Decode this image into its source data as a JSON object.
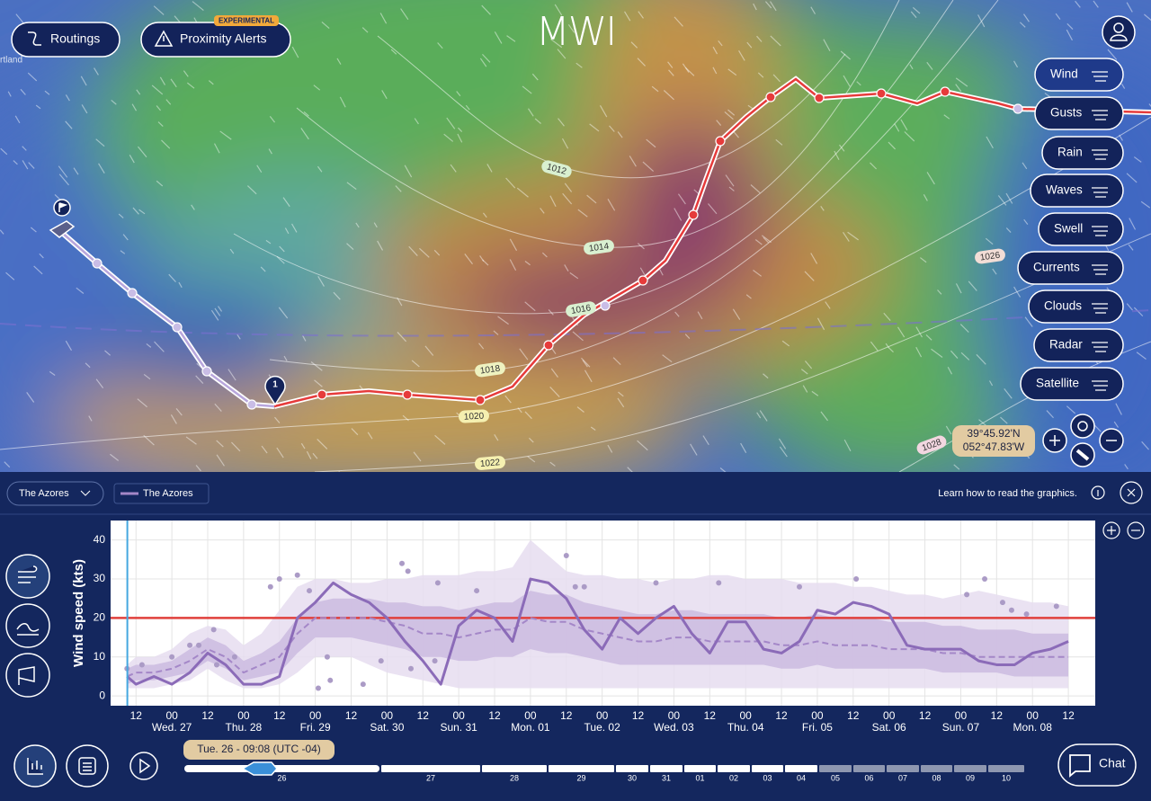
{
  "header": {
    "logo": "MWI",
    "routings": "Routings",
    "proximity_alerts": "Proximity Alerts",
    "badge": "EXPERIMENTAL"
  },
  "map": {
    "place_label": "rtland",
    "layers": [
      "Wind",
      "Gusts",
      "Rain",
      "Waves",
      "Swell",
      "Currents",
      "Clouds",
      "Radar",
      "Satellite"
    ],
    "isobars": [
      "1012",
      "1014",
      "1016",
      "1018",
      "1020",
      "1022",
      "1026",
      "1028"
    ],
    "waypoint_label": "1",
    "coordinates": {
      "lat": "39°45.92'N",
      "lon": "052°47.83'W"
    }
  },
  "panel": {
    "location_select": "The Azores",
    "legend_chip": "The Azores",
    "help": "Learn how to read the graphics.",
    "chat": "Chat",
    "time_label": "Tue. 26 - 09:08 (UTC -04)",
    "timeline_days": [
      "26",
      "27",
      "28",
      "29",
      "30",
      "31",
      "01",
      "02",
      "03",
      "04",
      "05",
      "06",
      "07",
      "08",
      "09",
      "10"
    ]
  },
  "chart_data": {
    "type": "line",
    "y_label": "Wind speed (kts)",
    "grid": true,
    "xlim": [
      3.5,
      333
    ],
    "ylim": [
      -2.5,
      45
    ],
    "yticks": [
      0,
      10,
      20,
      30,
      40
    ],
    "xticks": [
      12,
      {
        "value": 24,
        "label": "00"
      },
      {
        "value": 36,
        "label": "12"
      },
      {
        "value": 48,
        "label": "00"
      },
      {
        "value": 60,
        "label": "12"
      },
      {
        "value": 72,
        "label": "00"
      },
      {
        "value": 84,
        "label": "12"
      },
      {
        "value": 96,
        "label": "00"
      },
      {
        "value": 108,
        "label": "12"
      },
      {
        "value": 120,
        "label": "00"
      },
      {
        "value": 132,
        "label": "12"
      },
      {
        "value": 144,
        "label": "00"
      },
      {
        "value": 156,
        "label": "12"
      },
      {
        "value": 168,
        "label": "00"
      },
      {
        "value": 180,
        "label": "12"
      },
      {
        "value": 192,
        "label": "00"
      },
      {
        "value": 204,
        "label": "12"
      },
      {
        "value": 216,
        "label": "00"
      },
      {
        "value": 228,
        "label": "12"
      },
      {
        "value": 240,
        "label": "00"
      },
      {
        "value": 252,
        "label": "12"
      },
      {
        "value": 264,
        "label": "00"
      },
      {
        "value": 276,
        "label": "12"
      },
      {
        "value": 288,
        "label": "00"
      },
      {
        "value": 300,
        "label": "12"
      },
      {
        "value": 312,
        "label": "00"
      },
      {
        "value": 324,
        "label": "12"
      }
    ],
    "x_day_labels": [
      {
        "value": 24,
        "label": "Wed. 27"
      },
      {
        "value": 48,
        "label": "Thu. 28"
      },
      {
        "value": 72,
        "label": "Fri. 29"
      },
      {
        "value": 96,
        "label": "Sat. 30"
      },
      {
        "value": 120,
        "label": "Sun. 31"
      },
      {
        "value": 144,
        "label": "Mon. 01"
      },
      {
        "value": 168,
        "label": "Tue. 02"
      },
      {
        "value": 192,
        "label": "Wed. 03"
      },
      {
        "value": 216,
        "label": "Thu. 04"
      },
      {
        "value": 240,
        "label": "Fri. 05"
      },
      {
        "value": 264,
        "label": "Sat. 06"
      },
      {
        "value": 288,
        "label": "Sun. 07"
      },
      {
        "value": 312,
        "label": "Mon. 08"
      }
    ],
    "x": [
      9,
      12,
      18,
      24,
      30,
      36,
      42,
      48,
      54,
      60,
      66,
      72,
      78,
      84,
      90,
      96,
      102,
      108,
      114,
      120,
      126,
      132,
      138,
      144,
      150,
      156,
      162,
      168,
      174,
      180,
      186,
      192,
      198,
      204,
      210,
      216,
      222,
      228,
      234,
      240,
      246,
      252,
      258,
      264,
      270,
      276,
      282,
      288,
      294,
      300,
      306,
      312,
      318,
      324
    ],
    "bands": [
      {
        "color": "#e6ddf0",
        "lower": [
          2,
          2,
          2,
          3,
          4,
          7,
          4,
          2,
          2,
          3,
          6,
          10,
          10,
          10,
          8,
          6,
          5,
          4,
          3,
          2,
          2,
          2,
          2,
          2,
          2,
          2,
          2,
          2,
          2,
          2,
          2,
          2,
          2,
          2,
          2,
          2,
          2,
          2,
          2,
          2,
          2,
          2,
          2,
          2,
          2,
          2,
          2,
          2,
          2,
          2,
          2,
          2,
          2,
          2
        ],
        "upper": [
          8,
          10,
          10,
          12,
          16,
          18,
          17,
          13,
          16,
          22,
          28,
          30,
          30,
          29,
          29,
          30,
          30,
          31,
          31,
          31,
          32,
          32,
          33,
          40,
          36,
          32,
          31,
          31,
          30,
          30,
          29,
          30,
          30,
          31,
          31,
          30,
          30,
          30,
          29,
          29,
          29,
          28,
          28,
          27,
          26,
          26,
          25,
          26,
          27,
          26,
          25,
          24,
          24,
          23
        ]
      },
      {
        "color": "#cbbbe0",
        "lower": [
          3,
          4,
          4,
          5,
          6,
          9,
          7,
          4,
          5,
          6,
          11,
          15,
          15,
          15,
          14,
          13,
          12,
          10,
          10,
          9,
          9,
          10,
          10,
          12,
          11,
          11,
          10,
          9,
          8,
          8,
          8,
          8,
          8,
          8,
          8,
          8,
          8,
          7,
          7,
          8,
          7,
          7,
          7,
          7,
          7,
          7,
          6,
          6,
          6,
          6,
          5,
          5,
          5,
          5
        ],
        "upper": [
          7,
          8,
          8,
          9,
          12,
          15,
          13,
          9,
          11,
          14,
          20,
          24,
          25,
          25,
          25,
          24,
          24,
          23,
          23,
          22,
          23,
          24,
          24,
          27,
          26,
          26,
          24,
          23,
          22,
          21,
          21,
          22,
          22,
          21,
          21,
          21,
          21,
          20,
          20,
          21,
          20,
          20,
          20,
          19,
          19,
          19,
          18,
          18,
          17,
          17,
          17,
          16,
          16,
          16
        ]
      }
    ],
    "series": [
      {
        "color": "#a487c8",
        "dashed": true,
        "values": [
          5,
          6,
          6,
          7,
          9,
          12,
          10,
          6,
          8,
          10,
          16,
          20,
          20,
          20,
          20,
          19,
          18,
          16,
          16,
          15,
          16,
          17,
          17,
          20,
          19,
          19,
          17,
          16,
          15,
          14,
          14,
          15,
          15,
          14,
          14,
          14,
          14,
          13,
          13,
          14,
          13,
          13,
          13,
          12,
          12,
          12,
          11,
          11,
          10,
          10,
          10,
          10,
          10,
          10
        ]
      },
      {
        "color": "#8b6bb8",
        "dashed": false,
        "values": [
          5,
          3,
          5,
          3,
          6,
          11,
          8,
          3,
          3,
          5,
          20,
          24,
          29,
          26,
          24,
          20,
          14,
          9,
          3,
          18,
          22,
          20,
          14,
          30,
          29,
          25,
          17,
          12,
          20,
          16,
          20,
          23,
          16,
          11,
          19,
          19,
          12,
          11,
          14,
          22,
          21,
          24,
          23,
          21,
          13,
          12,
          12,
          12,
          9,
          8,
          8,
          11,
          12,
          14
        ]
      }
    ],
    "scatter": {
      "color": "#ab9bc6",
      "x": [
        9,
        14,
        24,
        30,
        33,
        38,
        39,
        45,
        57,
        60,
        66,
        70,
        73,
        76,
        77,
        88,
        94,
        101,
        103,
        104,
        112,
        113,
        126,
        156,
        159,
        162,
        186,
        207,
        234,
        253,
        290,
        296,
        302,
        305,
        310,
        320
      ],
      "y": [
        7,
        8,
        10,
        13,
        13,
        17,
        8,
        10,
        28,
        30,
        31,
        27,
        2,
        10,
        4,
        3,
        9,
        34,
        32,
        7,
        9,
        29,
        27,
        36,
        28,
        28,
        29,
        29,
        28,
        30,
        26,
        30,
        24,
        22,
        21,
        23
      ]
    },
    "threshold": {
      "value": 20,
      "color": "#e0403c"
    },
    "now_x": 9.1,
    "now_color": "#45a8e0"
  }
}
